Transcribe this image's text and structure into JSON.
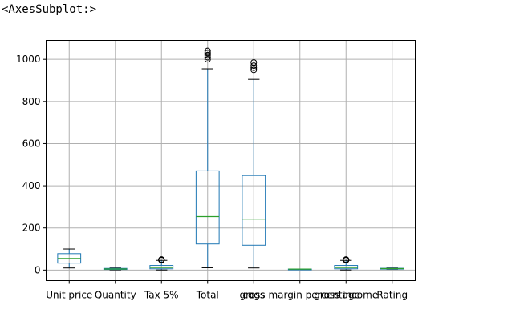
{
  "output_repr": "<AxesSubplot:>",
  "chart_data": {
    "type": "boxplot",
    "title": "",
    "xlabel": "",
    "ylabel": "",
    "ylim": [
      -50,
      1090
    ],
    "yticks": [
      0,
      200,
      400,
      600,
      800,
      1000
    ],
    "ytick_labels": [
      "0",
      "200",
      "400",
      "600",
      "800",
      "1000"
    ],
    "grid": true,
    "colors": {
      "box": "#1f77b4",
      "median": "#2ca02c",
      "whisker": "#1f77b4",
      "cap": "#000000",
      "flier": "#000000",
      "grid": "#b0b0b0"
    },
    "categories": [
      "Unit price",
      "Quantity",
      "Tax 5%",
      "Total",
      "cogs",
      "gross margin percentage",
      "gross income",
      "Rating"
    ],
    "boxes": [
      {
        "label": "Unit price",
        "whislo": 10,
        "q1": 33,
        "med": 55,
        "q3": 78,
        "whishi": 100,
        "fliers": []
      },
      {
        "label": "Quantity",
        "whislo": 1,
        "q1": 3,
        "med": 5,
        "q3": 8,
        "whishi": 10,
        "fliers": []
      },
      {
        "label": "Tax 5%",
        "whislo": 0.5,
        "q1": 6,
        "med": 12,
        "q3": 22,
        "whishi": 46,
        "fliers": [
          47,
          48,
          49,
          50
        ]
      },
      {
        "label": "Total",
        "whislo": 11,
        "q1": 124,
        "med": 254,
        "q3": 471,
        "whishi": 955,
        "fliers": [
          1000,
          1010,
          1020,
          1030,
          1040
        ]
      },
      {
        "label": "cogs",
        "whislo": 10,
        "q1": 118,
        "med": 242,
        "q3": 449,
        "whishi": 905,
        "fliers": [
          950,
          960,
          970,
          985
        ]
      },
      {
        "label": "gross margin percentage",
        "whislo": 4.76,
        "q1": 4.76,
        "med": 4.76,
        "q3": 4.76,
        "whishi": 4.76,
        "fliers": []
      },
      {
        "label": "gross income",
        "whislo": 0.5,
        "q1": 6,
        "med": 12,
        "q3": 22,
        "whishi": 46,
        "fliers": [
          47,
          48,
          49,
          50
        ]
      },
      {
        "label": "Rating",
        "whislo": 4,
        "q1": 5.5,
        "med": 7,
        "q3": 8.5,
        "whishi": 10,
        "fliers": []
      }
    ]
  }
}
